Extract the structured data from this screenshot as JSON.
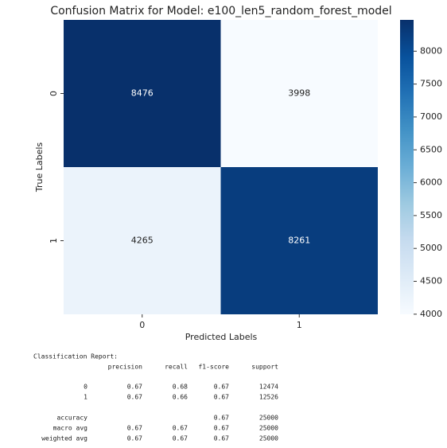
{
  "chart_data": {
    "type": "heatmap",
    "title": "Confusion Matrix for Model: e100_len5_random_forest_model",
    "xlabel": "Predicted Labels",
    "ylabel": "True Labels",
    "x_categories": [
      "0",
      "1"
    ],
    "y_categories": [
      "0",
      "1"
    ],
    "values": [
      [
        8476,
        3998
      ],
      [
        4265,
        8261
      ]
    ],
    "colormap": "Blues",
    "clim": [
      3998,
      8476
    ],
    "cticks": [
      4000,
      4500,
      5000,
      5500,
      6000,
      6500,
      7000,
      7500,
      8000
    ]
  },
  "report": {
    "title": "Classification Report:",
    "headers": [
      "precision",
      "recall",
      "f1-score",
      "support"
    ],
    "rows": [
      {
        "label": "0",
        "values": [
          0.67,
          0.68,
          0.67,
          12474
        ]
      },
      {
        "label": "1",
        "values": [
          0.67,
          0.66,
          0.67,
          12526
        ]
      },
      {
        "label": "accuracy",
        "values": [
          null,
          null,
          0.67,
          25000
        ]
      },
      {
        "label": "macro avg",
        "values": [
          0.67,
          0.67,
          0.67,
          25000
        ]
      },
      {
        "label": "weighted avg",
        "values": [
          0.67,
          0.67,
          0.67,
          25000
        ]
      }
    ]
  }
}
